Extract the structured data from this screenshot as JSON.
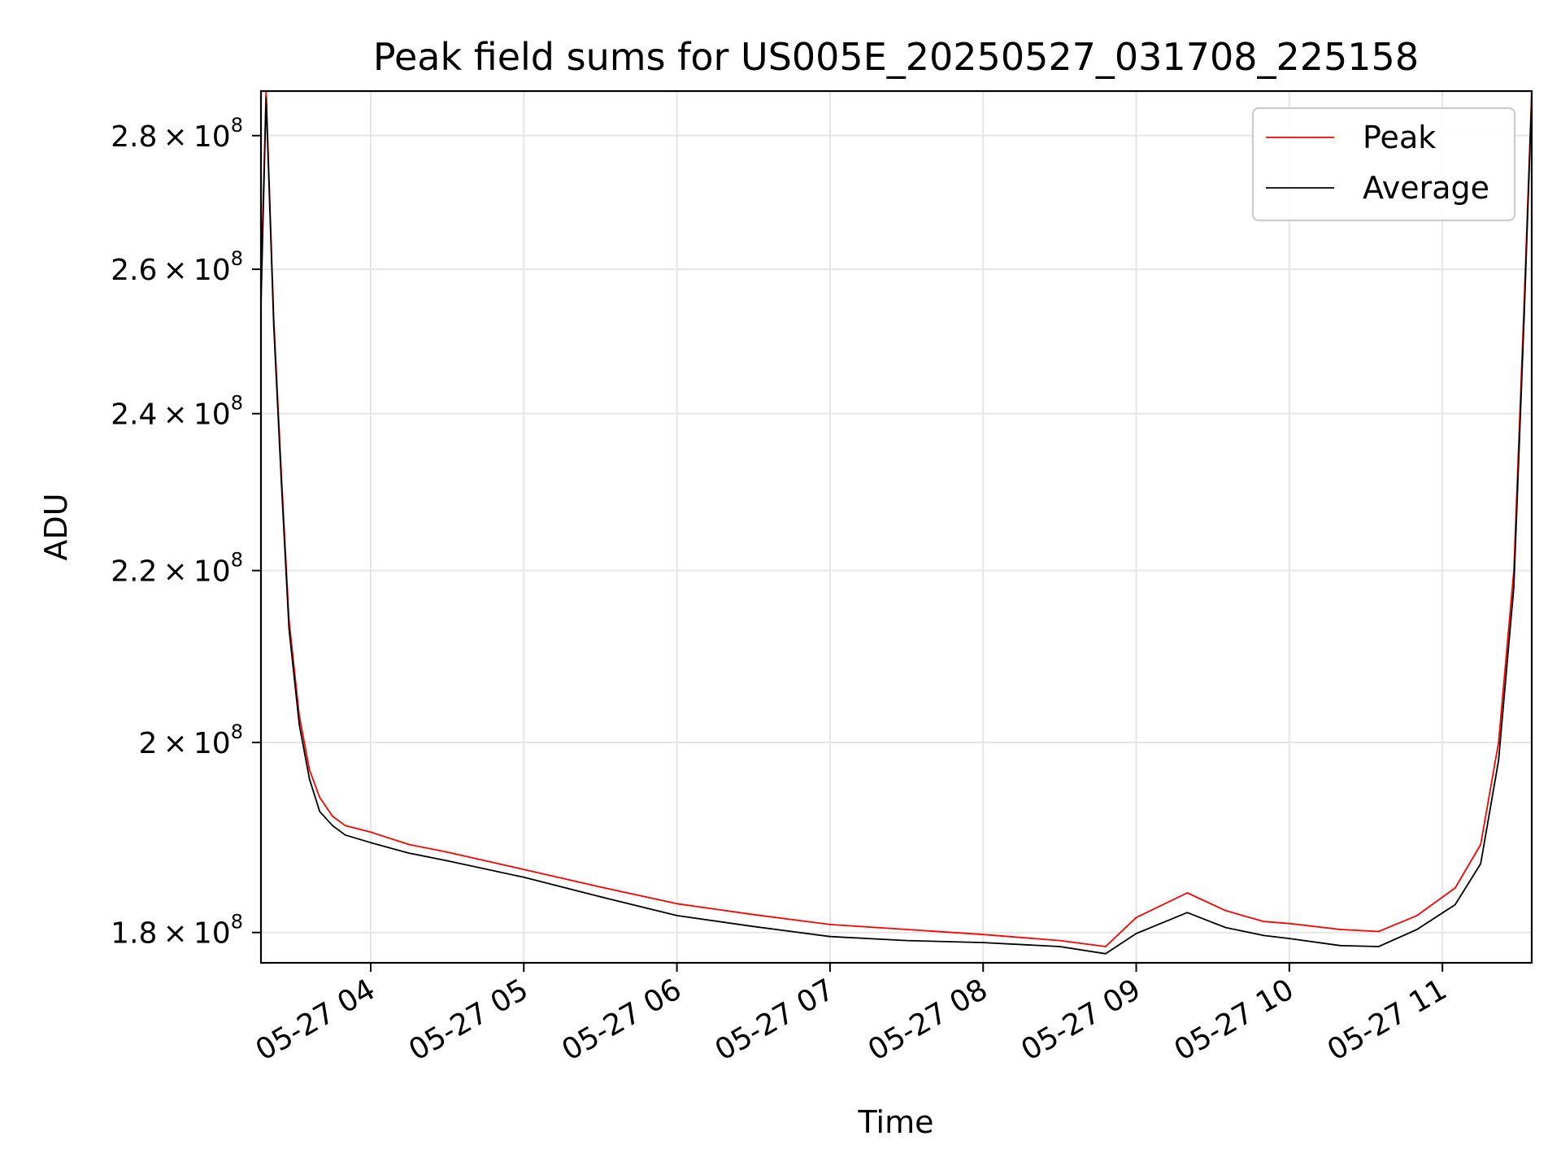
{
  "chart_data": {
    "type": "line",
    "title": "Peak field sums for US005E_20250527_031708_225158",
    "xlabel": "Time",
    "ylabel": "ADU",
    "xlim": [
      "2025-05-27 03:17",
      "2025-05-27 11:35"
    ],
    "ylim": [
      177000000,
      287000000
    ],
    "y_scale": "log",
    "grid": true,
    "legend_position": "top-right",
    "x_ticks": [
      {
        "value": "2025-05-27 04:00",
        "label": "05-27 04"
      },
      {
        "value": "2025-05-27 05:00",
        "label": "05-27 05"
      },
      {
        "value": "2025-05-27 06:00",
        "label": "05-27 06"
      },
      {
        "value": "2025-05-27 07:00",
        "label": "05-27 07"
      },
      {
        "value": "2025-05-27 08:00",
        "label": "05-27 08"
      },
      {
        "value": "2025-05-27 09:00",
        "label": "05-27 09"
      },
      {
        "value": "2025-05-27 10:00",
        "label": "05-27 10"
      },
      {
        "value": "2025-05-27 11:00",
        "label": "05-27 11"
      }
    ],
    "y_ticks": [
      {
        "value": 180000000,
        "mantissa": "1.8",
        "exponent": "8"
      },
      {
        "value": 200000000,
        "mantissa": "2",
        "exponent": "8"
      },
      {
        "value": 220000000,
        "mantissa": "2.2",
        "exponent": "8"
      },
      {
        "value": 240000000,
        "mantissa": "2.4",
        "exponent": "8"
      },
      {
        "value": 260000000,
        "mantissa": "2.6",
        "exponent": "8"
      },
      {
        "value": 280000000,
        "mantissa": "2.8",
        "exponent": "8"
      }
    ],
    "series": [
      {
        "name": "Peak",
        "color": "#ff0000",
        "x": [
          "2025-05-27 03:17",
          "2025-05-27 03:19",
          "2025-05-27 03:22",
          "2025-05-27 03:25",
          "2025-05-27 03:28",
          "2025-05-27 03:32",
          "2025-05-27 03:36",
          "2025-05-27 03:40",
          "2025-05-27 03:45",
          "2025-05-27 03:50",
          "2025-05-27 04:00",
          "2025-05-27 04:15",
          "2025-05-27 04:30",
          "2025-05-27 05:00",
          "2025-05-27 05:30",
          "2025-05-27 06:00",
          "2025-05-27 06:30",
          "2025-05-27 07:00",
          "2025-05-27 07:30",
          "2025-05-27 08:00",
          "2025-05-27 08:30",
          "2025-05-27 08:48",
          "2025-05-27 09:00",
          "2025-05-27 09:20",
          "2025-05-27 09:35",
          "2025-05-27 09:50",
          "2025-05-27 10:00",
          "2025-05-27 10:20",
          "2025-05-27 10:35",
          "2025-05-27 10:50",
          "2025-05-27 11:05",
          "2025-05-27 11:15",
          "2025-05-27 11:22",
          "2025-05-27 11:28",
          "2025-05-27 11:32",
          "2025-05-27 11:35"
        ],
        "y": [
          258000000,
          287000000,
          253000000,
          232000000,
          214000000,
          203000000,
          197000000,
          194000000,
          192000000,
          191000000,
          190300000,
          189000000,
          188200000,
          186400000,
          184600000,
          182900000,
          181800000,
          180800000,
          180300000,
          179800000,
          179200000,
          178600000,
          181500000,
          184000000,
          182200000,
          181100000,
          180900000,
          180300000,
          180100000,
          181700000,
          184500000,
          189000000,
          200000000,
          220000000,
          255000000,
          287000000
        ]
      },
      {
        "name": "Average",
        "color": "#000000",
        "x": [
          "2025-05-27 03:17",
          "2025-05-27 03:19",
          "2025-05-27 03:22",
          "2025-05-27 03:25",
          "2025-05-27 03:28",
          "2025-05-27 03:32",
          "2025-05-27 03:36",
          "2025-05-27 03:40",
          "2025-05-27 03:45",
          "2025-05-27 03:50",
          "2025-05-27 04:00",
          "2025-05-27 04:15",
          "2025-05-27 04:30",
          "2025-05-27 05:00",
          "2025-05-27 05:30",
          "2025-05-27 06:00",
          "2025-05-27 06:30",
          "2025-05-27 07:00",
          "2025-05-27 07:30",
          "2025-05-27 08:00",
          "2025-05-27 08:30",
          "2025-05-27 08:48",
          "2025-05-27 09:00",
          "2025-05-27 09:20",
          "2025-05-27 09:35",
          "2025-05-27 09:50",
          "2025-05-27 10:00",
          "2025-05-27 10:20",
          "2025-05-27 10:35",
          "2025-05-27 10:50",
          "2025-05-27 11:05",
          "2025-05-27 11:15",
          "2025-05-27 11:22",
          "2025-05-27 11:28",
          "2025-05-27 11:32",
          "2025-05-27 11:35"
        ],
        "y": [
          255000000,
          286000000,
          252000000,
          231000000,
          213000000,
          202000000,
          196000000,
          192500000,
          191000000,
          190000000,
          189200000,
          188100000,
          187300000,
          185600000,
          183600000,
          181700000,
          180600000,
          179600000,
          179200000,
          179000000,
          178600000,
          177900000,
          179900000,
          182000000,
          180500000,
          179700000,
          179400000,
          178700000,
          178600000,
          180300000,
          182800000,
          187000000,
          198000000,
          218000000,
          253000000,
          286000000
        ]
      }
    ]
  }
}
